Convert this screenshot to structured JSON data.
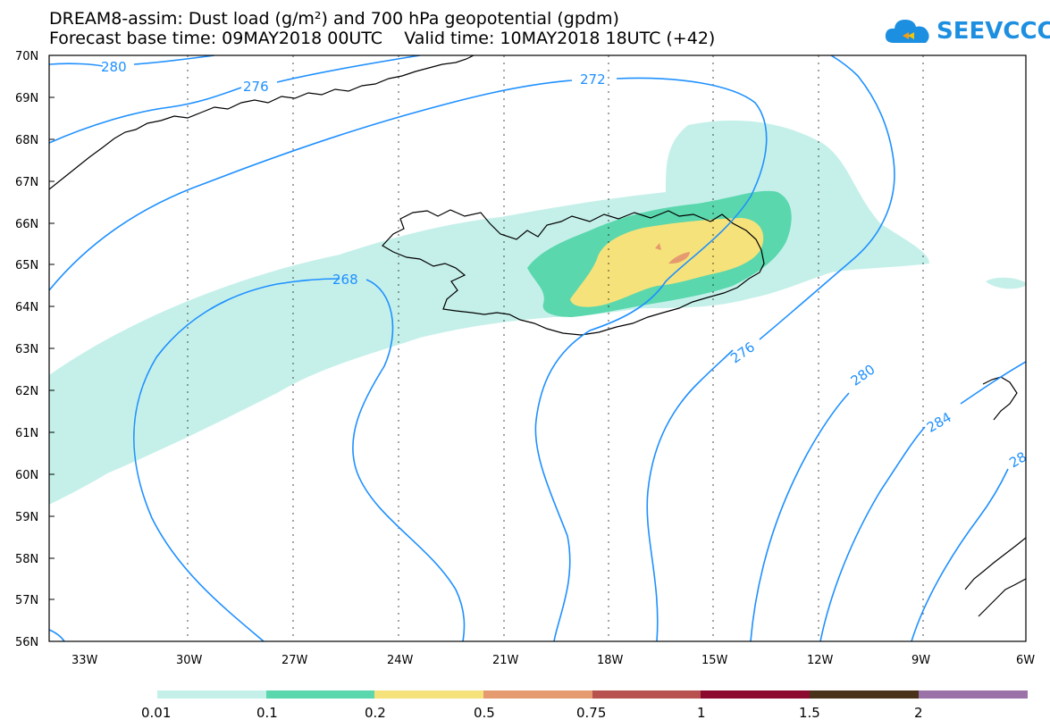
{
  "title": {
    "line1": "DREAM8-assim: Dust load (g/m²) and 700 hPa geopotential (gpdm)",
    "line2": "Forecast base time: 09MAY2018 00UTC    Valid time: 10MAY2018 18UTC (+42)"
  },
  "logo": {
    "text": "SEEVCCC",
    "icon": "cloud-icon",
    "color": "#1d8fe0"
  },
  "axes": {
    "lat_labels": [
      "70N",
      "69N",
      "68N",
      "67N",
      "66N",
      "65N",
      "64N",
      "63N",
      "62N",
      "61N",
      "60N",
      "59N",
      "58N",
      "57N",
      "56N"
    ],
    "lon_labels": [
      "33W",
      "30W",
      "27W",
      "24W",
      "21W",
      "18W",
      "15W",
      "12W",
      "9W",
      "6W"
    ]
  },
  "colorbar": {
    "colors": [
      "#c5f0ea",
      "#5ad7ad",
      "#f6e27a",
      "#e59a6f",
      "#b8524e",
      "#8b0a2e",
      "#4a3119",
      "#9b72a8"
    ],
    "labels": [
      "0.01",
      "0.1",
      "0.2",
      "0.5",
      "0.75",
      "1",
      "1.5",
      "2"
    ]
  },
  "contour_labels": {
    "c280a": "280",
    "c276a": "276",
    "c272": "272",
    "c268": "268",
    "c276b": "276",
    "c280b": "280",
    "c284": "284",
    "c28x": "28"
  },
  "colors": {
    "contour": "#1e90ff",
    "dust_low": "#c5f0ea",
    "dust_mid": "#5ad7ad",
    "dust_high": "#f6e27a",
    "dust_peak": "#e59a6f"
  }
}
